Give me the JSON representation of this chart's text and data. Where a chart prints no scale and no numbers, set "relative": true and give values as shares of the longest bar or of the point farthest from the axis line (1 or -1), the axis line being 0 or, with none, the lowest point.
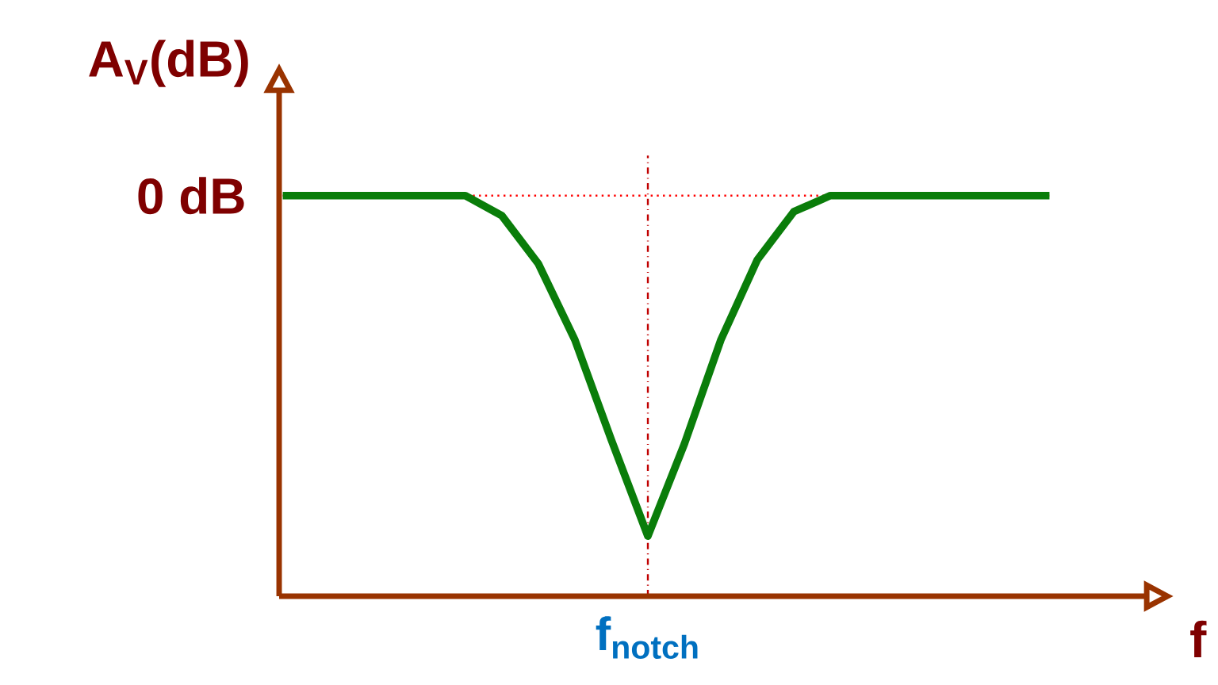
{
  "chart_data": {
    "type": "line",
    "relative": true,
    "xlabel": "f",
    "ylabel": "A$_{V}$(dB)",
    "categories": [
      null,
      null,
      null,
      null,
      null,
      null,
      null,
      null,
      null,
      null,
      null,
      null,
      null,
      null,
      null,
      null,
      null,
      null,
      null,
      null,
      null,
      null
    ],
    "series": [
      {
        "color": "#0a7d0a",
        "values": [
          1,
          1,
          1,
          1,
          1,
          1,
          0.95,
          0.83,
          0.64,
          0.39,
          0.15,
          0.38,
          0.64,
          0.84,
          0.96,
          1,
          1,
          1,
          1,
          1,
          1,
          1
        ]
      }
    ],
    "ref_lines": [
      {
        "axis": "y",
        "value": 1,
        "label": "0 dB",
        "color": "#ff0000",
        "line_style": "dotted"
      }
    ],
    "annotations": [
      {
        "text": "f$_{notch}$",
        "y": 0.15
      }
    ],
    "marker": "none",
    "line_style": "solid"
  }
}
